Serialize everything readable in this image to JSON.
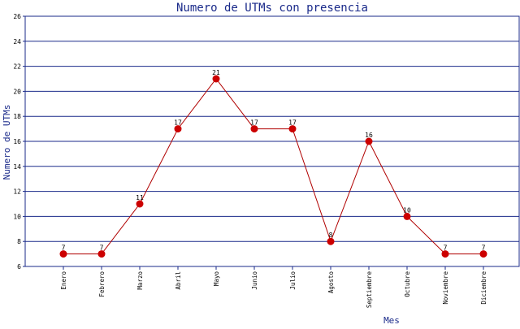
{
  "chart_data": {
    "type": "line",
    "title": "Numero de UTMs con presencia",
    "xlabel": "Mes",
    "ylabel": "Numero de UTMs",
    "categories": [
      "Enero",
      "Febrero",
      "Marzo",
      "Abril",
      "Mayo",
      "Junio",
      "Julio",
      "Agosto",
      "Septiembre",
      "Octubre",
      "Noviembre",
      "Diciembre"
    ],
    "values": [
      7,
      7,
      11,
      17,
      21,
      17,
      17,
      8,
      16,
      10,
      7,
      7
    ],
    "ylim": [
      6,
      26
    ],
    "yticks": [
      6,
      8,
      10,
      12,
      14,
      16,
      18,
      20,
      22,
      24,
      26
    ],
    "grid": "horizontal",
    "colors": {
      "line": "#b00000",
      "marker": "#cc0000",
      "grid": "#1a2a8a",
      "frame": "#1a2a8a",
      "text": "#1a2a8a"
    }
  }
}
